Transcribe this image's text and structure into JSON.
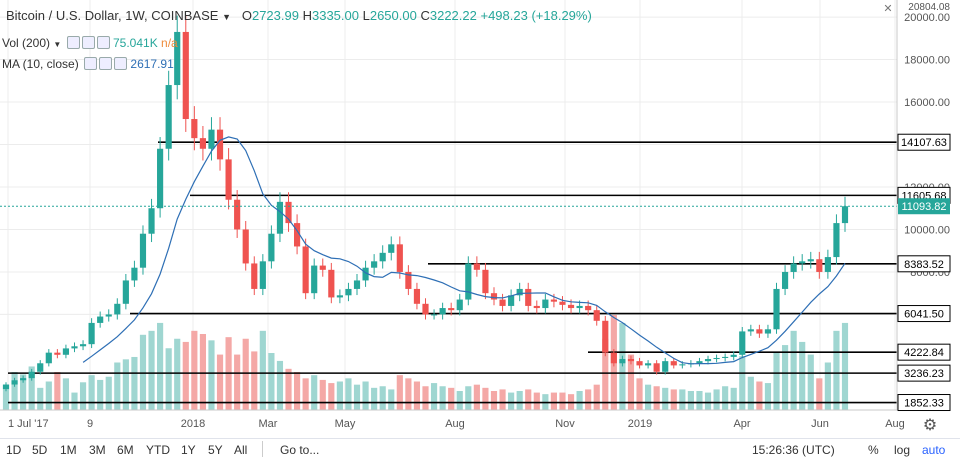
{
  "header": {
    "symbol": "Bitcoin / U.S. Dollar",
    "interval": "1W",
    "exchange": "COINBASE",
    "ohlc": {
      "O": "2723.99",
      "H": "3335.00",
      "L": "2650.00",
      "C": "3222.22"
    },
    "change": "+498.23 (+18.29%)"
  },
  "indicators": {
    "vol_label": "Vol (200)",
    "vol_value": "75.041K",
    "vol_value_tail": "n/a",
    "ma_label": "MA (10, close)",
    "ma_value": "2617.91"
  },
  "toolbar": {
    "ranges": [
      "1D",
      "5D",
      "1M",
      "3M",
      "6M",
      "YTD",
      "1Y",
      "5Y",
      "All"
    ],
    "goto": "Go to...",
    "time": "15:26:36 (UTC)",
    "percent": "%",
    "log": "log",
    "auto": "auto"
  },
  "colors": {
    "up": "#26a69a",
    "down": "#ef5350",
    "ma": "#2e6fb5",
    "grid": "#ececec",
    "current_price": "#26a69a"
  },
  "chart_data": {
    "type": "candlestick",
    "title": "Bitcoin / U.S. Dollar",
    "x_ticks": [
      "1 Jul '17",
      "9",
      "2018",
      "Mar",
      "May",
      "Aug",
      "Nov",
      "2019",
      "Apr",
      "Jun",
      "Aug"
    ],
    "y_ticks": [
      6000,
      8000,
      10000,
      12000,
      14000,
      16000,
      18000,
      20000
    ],
    "ylim": [
      1500,
      20804.08
    ],
    "top_label": "20804.08",
    "current_price": 11093.82,
    "current_price_label": "11093.82",
    "levels": [
      {
        "price": 14107.63,
        "label": "14107.63"
      },
      {
        "price": 11605.68,
        "label": "11605.68"
      },
      {
        "price": 8383.52,
        "label": "8383.52"
      },
      {
        "price": 6041.5,
        "label": "6041.50"
      },
      {
        "price": 4222.84,
        "label": "4222.84"
      },
      {
        "price": 3236.23,
        "label": "3236.23"
      },
      {
        "price": 1852.33,
        "label": "1852.33"
      }
    ],
    "candle_closes": [
      2700,
      2900,
      3000,
      3300,
      3700,
      4200,
      4100,
      4400,
      4500,
      4600,
      5600,
      5900,
      6000,
      6500,
      7600,
      8200,
      9800,
      11000,
      13800,
      16800,
      19300,
      15200,
      14300,
      13800,
      14700,
      13300,
      11400,
      10000,
      8400,
      7200,
      8500,
      9800,
      11300,
      10300,
      9200,
      7000,
      8300,
      8100,
      6800,
      6900,
      7200,
      7600,
      8200,
      8500,
      8900,
      9300,
      8000,
      7200,
      6500,
      6000,
      6000,
      6300,
      6200,
      6700,
      8400,
      8100,
      7000,
      6700,
      6400,
      6900,
      7200,
      6400,
      6300,
      6700,
      6600,
      6450,
      6300,
      6400,
      6200,
      5700,
      4200,
      3700,
      3900,
      3800,
      3600,
      3700,
      3300,
      3800,
      3600,
      3650,
      3700,
      3800,
      3900,
      3950,
      4000,
      4100,
      5200,
      5300,
      5100,
      5300,
      7200,
      8000,
      8400,
      8500,
      8600,
      8000,
      8700,
      10300,
      11093.82
    ],
    "volume_values": [
      32,
      48,
      45,
      55,
      28,
      36,
      48,
      40,
      22,
      35,
      44,
      38,
      42,
      60,
      64,
      67,
      95,
      100,
      110,
      78,
      90,
      86,
      100,
      96,
      88,
      70,
      92,
      70,
      90,
      74,
      100,
      72,
      62,
      52,
      48,
      40,
      44,
      38,
      34,
      36,
      40,
      32,
      36,
      28,
      30,
      26,
      44,
      40,
      36,
      30,
      34,
      30,
      28,
      24,
      30,
      32,
      28,
      24,
      26,
      22,
      24,
      26,
      22,
      20,
      22,
      22,
      20,
      24,
      26,
      32,
      90,
      120,
      110,
      70,
      40,
      32,
      30,
      28,
      26,
      26,
      24,
      24,
      22,
      26,
      30,
      28,
      68,
      42,
      36,
      34,
      72,
      82,
      100,
      86,
      70,
      40,
      60,
      100,
      110
    ],
    "ma_period": 10
  }
}
